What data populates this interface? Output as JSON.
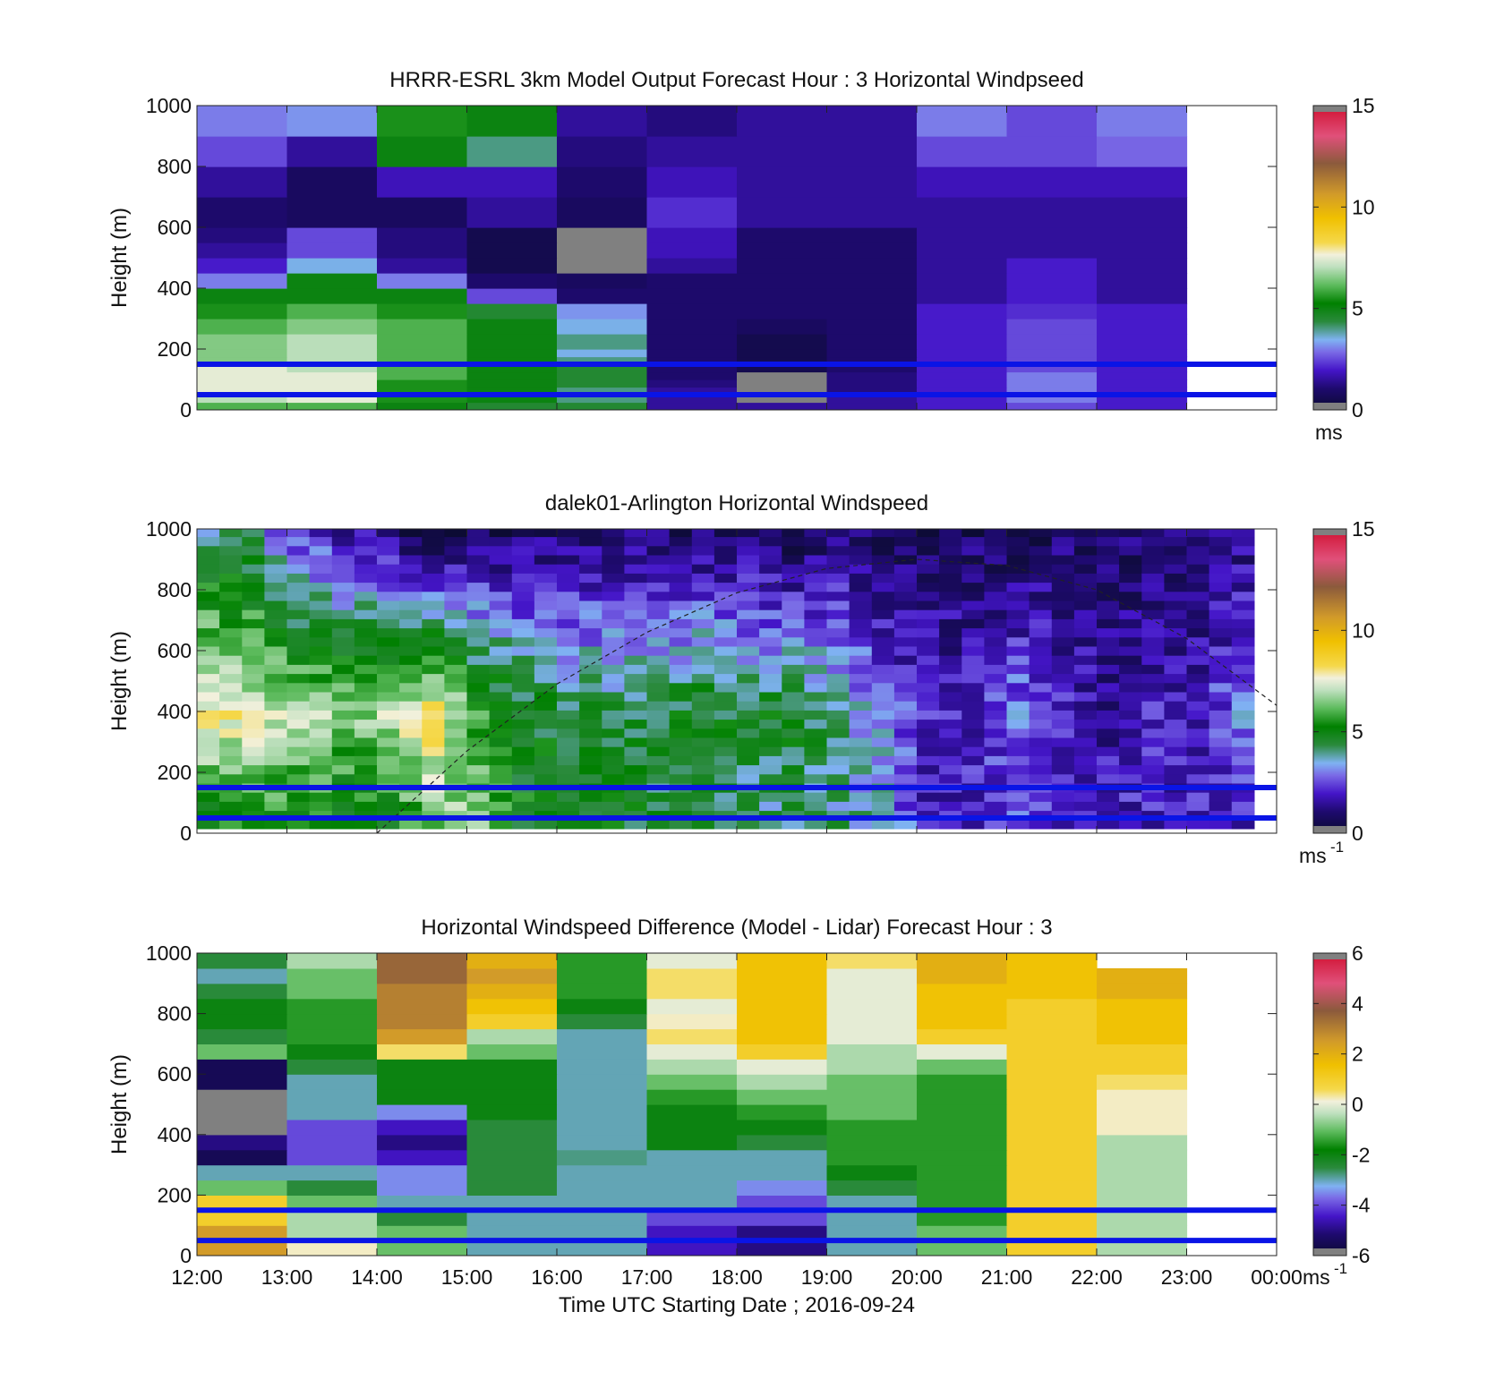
{
  "chart_data": [
    {
      "type": "heatmap",
      "title": "HRRR-ESRL 3km Model Output   Forecast Hour : 3 Horizontal Windpseed",
      "xlabel": "",
      "ylabel": "Height (m)",
      "xlim": [
        0,
        12
      ],
      "ylim": [
        0,
        1000
      ],
      "yticks": [
        0,
        200,
        400,
        600,
        800,
        1000
      ],
      "x_edges": [
        0,
        1,
        2,
        3,
        4,
        5,
        6,
        7,
        8,
        9,
        10,
        11
      ],
      "y_edges": [
        0,
        25,
        50,
        75,
        100,
        125,
        150,
        175,
        200,
        250,
        300,
        350,
        400,
        450,
        500,
        550,
        600,
        700,
        800,
        900,
        1000
      ],
      "z": [
        [
          6.0,
          6.0,
          5.0,
          4.5,
          4.5,
          1.5,
          1.5,
          1.5,
          2.0,
          2.5,
          2.0
        ],
        [
          7.0,
          7.5,
          5.5,
          5.0,
          4.0,
          1.5,
          0.0,
          1.5,
          2.0,
          3.0,
          2.0
        ],
        [
          7.5,
          7.5,
          5.5,
          5.0,
          4.0,
          1.5,
          0.0,
          1.2,
          2.0,
          3.0,
          2.0
        ],
        [
          7.5,
          7.5,
          5.5,
          5.0,
          4.5,
          1.2,
          0.0,
          1.2,
          2.0,
          3.0,
          2.0
        ],
        [
          7.5,
          7.5,
          6.0,
          5.0,
          4.5,
          1.0,
          0.0,
          1.2,
          2.0,
          3.0,
          2.0
        ],
        [
          7.5,
          7.0,
          6.0,
          5.0,
          4.5,
          1.0,
          0.5,
          1.0,
          2.0,
          2.5,
          2.0
        ],
        [
          6.5,
          7.0,
          6.0,
          5.0,
          4.0,
          1.0,
          0.5,
          1.0,
          2.0,
          2.5,
          2.0
        ],
        [
          6.5,
          7.0,
          6.0,
          5.0,
          3.5,
          1.0,
          0.5,
          1.0,
          2.0,
          2.5,
          2.0
        ],
        [
          6.5,
          7.0,
          6.0,
          5.0,
          4.0,
          1.0,
          0.5,
          1.0,
          2.0,
          2.5,
          2.0
        ],
        [
          6.0,
          6.5,
          6.0,
          5.0,
          3.5,
          1.0,
          0.8,
          1.0,
          2.0,
          2.5,
          2.0
        ],
        [
          5.5,
          6.0,
          5.5,
          4.5,
          3.2,
          1.0,
          1.0,
          1.0,
          2.0,
          2.2,
          2.0
        ],
        [
          5.0,
          5.0,
          5.0,
          2.5,
          1.0,
          1.0,
          1.0,
          1.0,
          1.5,
          2.0,
          1.5
        ],
        [
          3.0,
          5.0,
          3.0,
          1.0,
          0.8,
          1.0,
          1.0,
          1.0,
          1.5,
          2.0,
          1.5
        ],
        [
          2.0,
          3.5,
          1.5,
          0.5,
          0.0,
          1.5,
          1.0,
          1.0,
          1.5,
          2.0,
          1.5
        ],
        [
          1.5,
          2.5,
          1.2,
          0.5,
          0.0,
          1.8,
          1.0,
          1.0,
          1.5,
          1.5,
          1.5
        ],
        [
          1.2,
          2.5,
          1.2,
          0.5,
          0.0,
          1.8,
          1.0,
          1.0,
          1.5,
          1.5,
          1.5
        ],
        [
          1.0,
          0.8,
          0.8,
          1.5,
          0.8,
          2.2,
          1.5,
          1.5,
          1.5,
          1.5,
          1.5
        ],
        [
          1.5,
          0.8,
          1.8,
          1.8,
          1.0,
          1.8,
          1.5,
          1.5,
          1.8,
          1.8,
          1.8
        ],
        [
          2.5,
          1.5,
          5.0,
          4.0,
          1.2,
          1.5,
          1.5,
          1.5,
          2.5,
          2.5,
          2.8
        ],
        [
          3.0,
          3.2,
          5.5,
          5.0,
          1.5,
          1.2,
          1.5,
          1.5,
          3.0,
          2.5,
          3.0
        ]
      ],
      "colorbar": {
        "min": 0,
        "max": 15,
        "ticks": [
          "0",
          "5",
          "10",
          "15"
        ],
        "unit": "ms"
      },
      "hlines": [
        50,
        150
      ]
    },
    {
      "type": "heatmap",
      "title": "dalek01-Arlington  Horizontal Windspeed",
      "xlabel": "",
      "ylabel": "Height (m)",
      "xlim": [
        0,
        12
      ],
      "ylim": [
        0,
        1000
      ],
      "yticks": [
        0,
        200,
        400,
        600,
        800,
        1000
      ],
      "lidar_range_height": [
        10,
        1000
      ],
      "profile_interval_hours": 0.25,
      "profile_heights": [
        30,
        60,
        90,
        120,
        150,
        180,
        210,
        240,
        270,
        300,
        330,
        360,
        390,
        420,
        450,
        480,
        510,
        540,
        570,
        600,
        630,
        660,
        690,
        720,
        750,
        780,
        810,
        840,
        870,
        900,
        930,
        960,
        990
      ],
      "speed_vs_height_by_hour": {
        "hours": [
          0,
          0.5,
          1,
          1.5,
          2,
          2.5,
          3,
          3.5,
          4,
          4.5,
          5,
          5.5,
          6,
          6.5,
          7,
          7.5,
          8,
          8.5,
          9,
          9.5,
          10,
          10.5,
          11,
          11.5,
          12
        ],
        "speed_at_50m": [
          5.0,
          5.5,
          5.5,
          5.0,
          5.0,
          6.5,
          6.5,
          5.0,
          5.0,
          5.0,
          4.5,
          4.5,
          4.0,
          4.0,
          4.0,
          3.5,
          2.0,
          2.0,
          2.5,
          2.0,
          2.0,
          2.0,
          2.0,
          2.0,
          2.0
        ],
        "speed_at_400m": [
          8.0,
          7.5,
          7.0,
          6.5,
          7.0,
          8.0,
          6.0,
          5.0,
          4.5,
          4.5,
          4.5,
          5.0,
          4.5,
          5.0,
          4.0,
          3.0,
          2.0,
          2.0,
          3.0,
          2.0,
          1.5,
          2.0,
          2.0,
          3.0,
          2.5
        ],
        "speed_at_900m": [
          4.5,
          4.5,
          3.0,
          2.5,
          2.0,
          1.5,
          1.5,
          1.5,
          1.5,
          1.5,
          1.5,
          1.5,
          1.5,
          1.0,
          1.5,
          1.0,
          1.0,
          1.0,
          1.0,
          1.0,
          1.0,
          1.0,
          1.0,
          1.5,
          1.5
        ]
      },
      "colorbar": {
        "min": 0,
        "max": 15,
        "ticks": [
          "0",
          "5",
          "10",
          "15"
        ],
        "unit": "ms",
        "unit_exponent": "-1"
      },
      "hlines": [
        50,
        150
      ],
      "boundary_layer_curve": {
        "x_hours": [
          2.0,
          3.0,
          4.0,
          5.0,
          6.0,
          7.0,
          8.0,
          9.0,
          10.0,
          11.0,
          12.0
        ],
        "height_m": [
          0,
          270,
          490,
          660,
          790,
          870,
          900,
          880,
          800,
          640,
          420
        ]
      }
    },
    {
      "type": "heatmap",
      "title": "Horizontal Windspeed Difference (Model - Lidar) Forecast Hour : 3",
      "xlabel": "Time UTC  Starting Date ; 2016-09-24",
      "ylabel": "Height (m)",
      "xlim": [
        0,
        12
      ],
      "ylim": [
        0,
        1000
      ],
      "yticks": [
        0,
        200,
        400,
        600,
        800,
        1000
      ],
      "xticklabels": [
        "12:00",
        "13:00",
        "14:00",
        "15:00",
        "16:00",
        "17:00",
        "18:00",
        "19:00",
        "20:00",
        "21:00",
        "22:00",
        "23:00",
        "00:00"
      ],
      "x_edges": [
        0,
        1,
        2,
        3,
        4,
        5,
        6,
        7,
        8,
        9,
        10,
        11
      ],
      "y_edges": [
        0,
        50,
        100,
        150,
        200,
        250,
        300,
        350,
        400,
        450,
        500,
        550,
        600,
        650,
        700,
        750,
        800,
        850,
        900,
        950,
        1000
      ],
      "z": [
        [
          2.5,
          0.2,
          -1.0,
          -3.0,
          -3.0,
          -4.5,
          -5.0,
          -3.0,
          -1.0,
          1.0,
          -0.5
        ],
        [
          2.5,
          -0.5,
          -1.0,
          -3.0,
          -3.0,
          -4.5,
          -5.0,
          -3.0,
          -1.0,
          1.0,
          -0.5
        ],
        [
          1.0,
          -0.5,
          -2.5,
          -3.0,
          -3.0,
          -4.0,
          -4.0,
          -3.0,
          -1.5,
          1.0,
          -0.5
        ],
        [
          1.0,
          -1.0,
          -3.0,
          -3.0,
          -3.0,
          -3.0,
          -4.0,
          -3.0,
          -1.5,
          1.0,
          -0.5
        ],
        [
          -1.0,
          -2.5,
          -3.5,
          -2.5,
          -3.0,
          -3.0,
          -3.5,
          -2.5,
          -1.5,
          1.0,
          -0.5
        ],
        [
          -3.0,
          -3.0,
          -3.5,
          -2.5,
          -3.0,
          -3.0,
          -3.0,
          -2.0,
          -1.5,
          1.0,
          -0.5
        ],
        [
          -5.5,
          -4.0,
          -4.5,
          -2.5,
          -2.8,
          -3.0,
          -3.0,
          -1.5,
          -1.5,
          1.0,
          -0.5
        ],
        [
          -5.0,
          -4.0,
          -5.0,
          -2.5,
          -3.0,
          -2.0,
          -2.5,
          -1.5,
          -1.5,
          1.0,
          -0.5
        ],
        [
          -6.0,
          -4.0,
          -4.5,
          -2.5,
          -3.0,
          -2.0,
          -2.0,
          -1.5,
          -1.5,
          1.0,
          0.2
        ],
        [
          -6.0,
          -3.0,
          -3.5,
          -2.0,
          -3.0,
          -2.0,
          -1.5,
          -1.0,
          -1.5,
          1.0,
          0.2
        ],
        [
          -6.0,
          -3.0,
          -2.0,
          -2.0,
          -3.0,
          -1.5,
          -1.0,
          -1.0,
          -1.5,
          1.0,
          0.2
        ],
        [
          -5.5,
          -3.0,
          -2.0,
          -2.0,
          -3.0,
          -1.0,
          -0.5,
          -1.0,
          -1.5,
          1.0,
          0.5
        ],
        [
          -5.5,
          -2.5,
          -2.0,
          -2.0,
          -3.0,
          -0.5,
          0.0,
          -0.5,
          -1.0,
          1.0,
          1.0
        ],
        [
          -1.0,
          -2.0,
          0.5,
          -1.0,
          -3.0,
          0.0,
          1.0,
          -0.5,
          0.0,
          1.0,
          1.0
        ],
        [
          -2.5,
          -1.5,
          2.5,
          -0.5,
          -3.0,
          0.5,
          1.5,
          0.0,
          1.0,
          1.0,
          1.5
        ],
        [
          -2.0,
          -1.5,
          3.0,
          1.0,
          -2.5,
          0.2,
          1.5,
          0.0,
          1.5,
          1.0,
          1.5
        ],
        [
          -2.0,
          -1.5,
          3.0,
          1.5,
          -2.0,
          0.0,
          1.5,
          0.0,
          1.5,
          1.0,
          1.5
        ],
        [
          -2.5,
          -1.0,
          3.0,
          2.0,
          -1.5,
          0.5,
          1.5,
          0.0,
          1.5,
          1.5,
          2.0
        ],
        [
          -3.0,
          -1.0,
          3.5,
          2.5,
          -1.5,
          0.5,
          1.5,
          0.0,
          2.0,
          1.5,
          2.0
        ],
        [
          -2.5,
          -0.5,
          3.5,
          2.0,
          -1.5,
          0.0,
          1.5,
          0.5,
          2.0,
          1.5,
          null
        ]
      ],
      "colorbar": {
        "min": -6,
        "max": 6,
        "ticks": [
          "-6",
          "-4",
          "-2",
          "0",
          "2",
          "4",
          "6"
        ],
        "unit": "ms",
        "unit_exponent": "-1"
      },
      "hlines": [
        50,
        150
      ]
    }
  ]
}
